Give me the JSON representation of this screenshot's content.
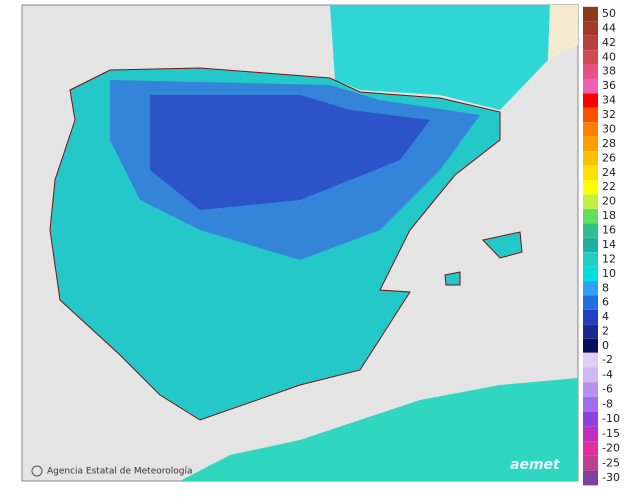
{
  "legend": {
    "items": [
      {
        "label": "50",
        "color": "#8b3a1a"
      },
      {
        "label": "44",
        "color": "#a33a28"
      },
      {
        "label": "42",
        "color": "#b84040"
      },
      {
        "label": "40",
        "color": "#d04c50"
      },
      {
        "label": "38",
        "color": "#e8508a"
      },
      {
        "label": "36",
        "color": "#f060b0"
      },
      {
        "label": "34",
        "color": "#ff0000"
      },
      {
        "label": "32",
        "color": "#ff5000"
      },
      {
        "label": "30",
        "color": "#ff8000"
      },
      {
        "label": "28",
        "color": "#ffa000"
      },
      {
        "label": "26",
        "color": "#ffc000"
      },
      {
        "label": "24",
        "color": "#ffe000"
      },
      {
        "label": "22",
        "color": "#ffff00"
      },
      {
        "label": "20",
        "color": "#c0f040"
      },
      {
        "label": "18",
        "color": "#60e060"
      },
      {
        "label": "16",
        "color": "#30c090"
      },
      {
        "label": "14",
        "color": "#20b0a0"
      },
      {
        "label": "12",
        "color": "#20d0c0"
      },
      {
        "label": "10",
        "color": "#00e0e0"
      },
      {
        "label": "8",
        "color": "#30a0f0"
      },
      {
        "label": "6",
        "color": "#2070e0"
      },
      {
        "label": "4",
        "color": "#2040c0"
      },
      {
        "label": "2",
        "color": "#1a2a90"
      },
      {
        "label": "0",
        "color": "#0a1060"
      },
      {
        "label": "-2",
        "color": "#e0d0f0"
      },
      {
        "label": "-4",
        "color": "#d0b8f0"
      },
      {
        "label": "-6",
        "color": "#b890f0"
      },
      {
        "label": "-8",
        "color": "#a070e8"
      },
      {
        "label": "-10",
        "color": "#9040e0"
      },
      {
        "label": "-15",
        "color": "#c030c0"
      },
      {
        "label": "-20",
        "color": "#e030a0"
      },
      {
        "label": "-25",
        "color": "#c04090"
      },
      {
        "label": "-30",
        "color": "#8040a0"
      }
    ]
  },
  "credit": "Agencia Estatal de Meteorología",
  "logo": "aemet"
}
